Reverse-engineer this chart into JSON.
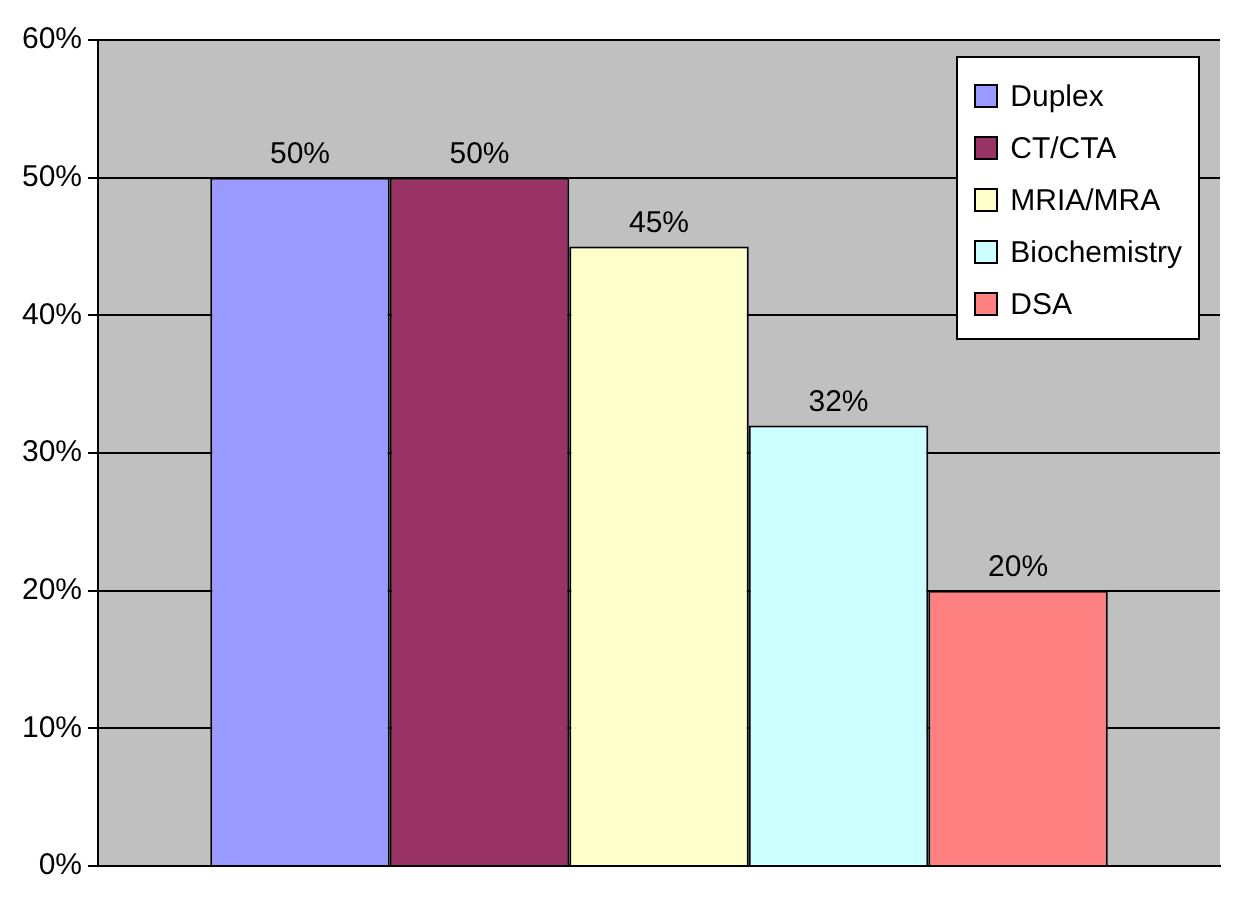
{
  "chart_data": {
    "type": "bar",
    "categories": [
      null
    ],
    "series": [
      {
        "name": "Duplex",
        "color": "#9999ff",
        "values": [
          50
        ],
        "value_labels": [
          "50%"
        ]
      },
      {
        "name": "CT/CTA",
        "color": "#993366",
        "values": [
          50
        ],
        "value_labels": [
          "50%"
        ]
      },
      {
        "name": "MRIA/MRA",
        "color": "#ffffcc",
        "values": [
          45
        ],
        "value_labels": [
          "45%"
        ]
      },
      {
        "name": "Biochemistry",
        "color": "#ccffff",
        "values": [
          32
        ],
        "value_labels": [
          "32%"
        ]
      },
      {
        "name": "DSA",
        "color": "#ff8080",
        "values": [
          20
        ],
        "value_labels": [
          "20%"
        ]
      }
    ],
    "ylim": [
      0,
      60
    ],
    "yticks": [
      {
        "value": 0,
        "label": "0%"
      },
      {
        "value": 10,
        "label": "10%"
      },
      {
        "value": 20,
        "label": "20%"
      },
      {
        "value": 30,
        "label": "30%"
      },
      {
        "value": 40,
        "label": "40%"
      },
      {
        "value": 50,
        "label": "50%"
      },
      {
        "value": 60,
        "label": "60%"
      }
    ],
    "grid": "y",
    "legend": "top right"
  }
}
